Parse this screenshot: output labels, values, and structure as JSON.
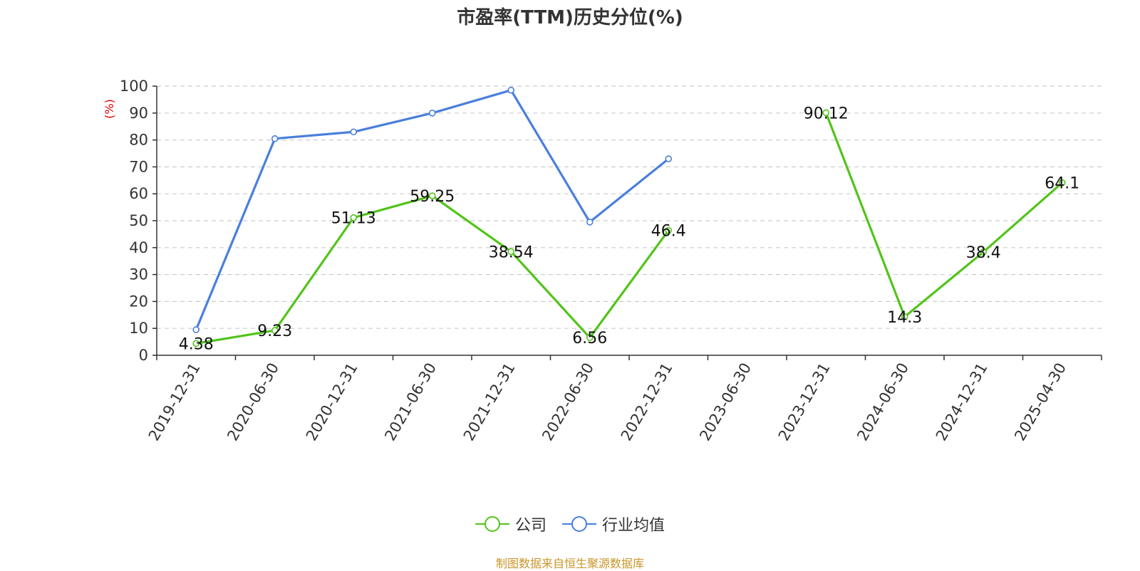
{
  "title": "市盈率(TTM)历史分位(%)",
  "footer": "制图数据来自恒生聚源数据库",
  "chart_data": {
    "type": "line",
    "title": "市盈率(TTM)历史分位(%)",
    "ylabel": "(%)",
    "xlabel": "",
    "ylim": [
      0,
      100
    ],
    "yticks": [
      0,
      10,
      20,
      30,
      40,
      50,
      60,
      70,
      80,
      90,
      100
    ],
    "grid": true,
    "legend_position": "bottom",
    "categories": [
      "2019-12-31",
      "2020-06-30",
      "2020-12-31",
      "2021-06-30",
      "2021-12-31",
      "2022-06-30",
      "2022-12-31",
      "2023-06-30",
      "2023-12-31",
      "2024-06-30",
      "2024-12-31",
      "2025-04-30"
    ],
    "series": [
      {
        "name": "公司",
        "color": "#52c41a",
        "values": [
          4.38,
          9.23,
          51.13,
          59.25,
          38.54,
          6.56,
          46.4,
          null,
          90.12,
          14.3,
          38.4,
          64.1
        ],
        "labels": [
          "4.38",
          "9.23",
          "51.13",
          "59.25",
          "38.54",
          "6.56",
          "46.4",
          "",
          "90.12",
          "14.3",
          "38.4",
          "64.1"
        ]
      },
      {
        "name": "行业均值",
        "color": "#4a7fdc",
        "values": [
          9.5,
          80.5,
          83,
          90,
          98.5,
          49.5,
          73,
          null,
          null,
          null,
          null,
          null
        ]
      }
    ]
  }
}
